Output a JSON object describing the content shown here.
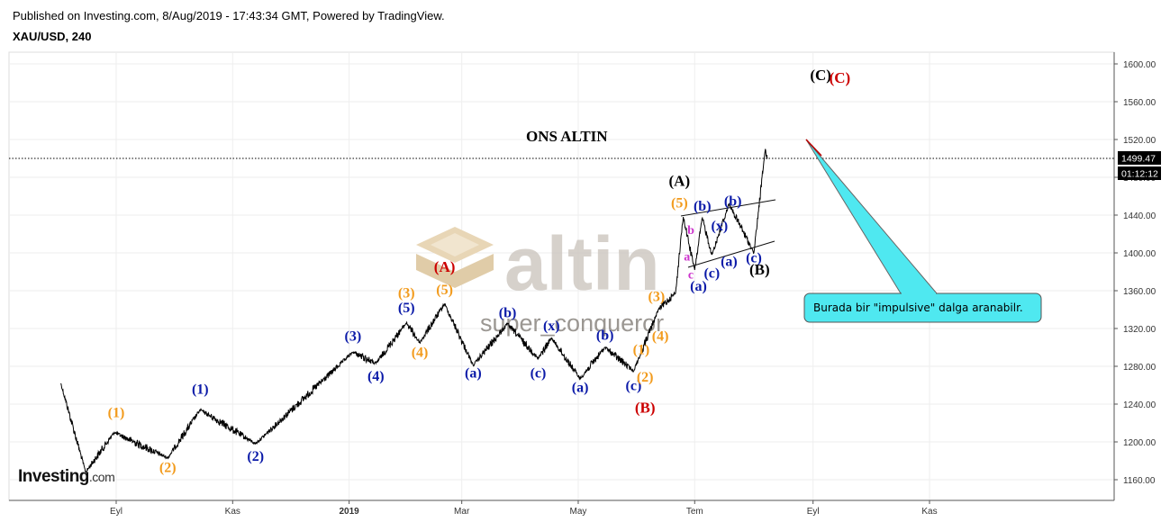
{
  "header": {
    "published": "Published on Investing.com, 8/Aug/2019 - 17:43:34 GMT, Powered by TradingView.",
    "symbol": "XAU/USD, 240"
  },
  "watermark": {
    "site": "altin",
    "author": "super_conqueror"
  },
  "logo": {
    "brand": "Investing",
    "suffix": ".com"
  },
  "price_tags": {
    "last_price": "1499.47",
    "countdown": "01:12:12"
  },
  "annotations": {
    "title": "ONS ALTIN",
    "callout": "Burada bir \"impulsive\" dalga aranabilr."
  },
  "colors": {
    "price_line": "#000000",
    "label_orange": "#f29b1d",
    "label_blue": "#0b1aa8",
    "label_red": "#cc0000",
    "label_black": "#000000",
    "label_magenta": "#cc33cc",
    "callout_fill": "#4fe8f0",
    "watermark": "#c8c0b8"
  },
  "chart_data": {
    "type": "line",
    "title": "",
    "series_name": "XAU/USD",
    "ylim": [
      1140,
      1615
    ],
    "y_ticks": [
      "1600.00",
      "1560.00",
      "1520.00",
      "1480.00",
      "1440.00",
      "1400.00",
      "1360.00",
      "1320.00",
      "1280.00",
      "1240.00",
      "1200.00",
      "1160.00"
    ],
    "x_ticks": [
      "Eyl",
      "Kas",
      "2019",
      "Mar",
      "May",
      "Tem",
      "Eyl",
      "Kas"
    ],
    "last_price": 1499.47,
    "key_points": [
      {
        "x": "2018-08-03",
        "y": 1262
      },
      {
        "x": "2018-08-16",
        "y": 1168
      },
      {
        "x": "2018-08-31",
        "y": 1210
      },
      {
        "x": "2018-09-28",
        "y": 1183
      },
      {
        "x": "2018-10-15",
        "y": 1234
      },
      {
        "x": "2018-11-13",
        "y": 1198
      },
      {
        "x": "2019-01-03",
        "y": 1295
      },
      {
        "x": "2019-01-15",
        "y": 1283
      },
      {
        "x": "2019-01-31",
        "y": 1326
      },
      {
        "x": "2019-02-07",
        "y": 1305
      },
      {
        "x": "2019-02-20",
        "y": 1346
      },
      {
        "x": "2019-03-07",
        "y": 1281
      },
      {
        "x": "2019-03-25",
        "y": 1325
      },
      {
        "x": "2019-04-10",
        "y": 1288
      },
      {
        "x": "2019-04-17",
        "y": 1310
      },
      {
        "x": "2019-05-02",
        "y": 1267
      },
      {
        "x": "2019-05-15",
        "y": 1300
      },
      {
        "x": "2019-05-30",
        "y": 1275
      },
      {
        "x": "2019-06-12",
        "y": 1340
      },
      {
        "x": "2019-06-21",
        "y": 1358
      },
      {
        "x": "2019-06-25",
        "y": 1438
      },
      {
        "x": "2019-07-01",
        "y": 1382
      },
      {
        "x": "2019-07-05",
        "y": 1437
      },
      {
        "x": "2019-07-10",
        "y": 1398
      },
      {
        "x": "2019-07-19",
        "y": 1452
      },
      {
        "x": "2019-08-01",
        "y": 1400
      },
      {
        "x": "2019-08-07",
        "y": 1510
      },
      {
        "x": "2019-08-08",
        "y": 1499.47
      }
    ],
    "wave_labels": [
      {
        "text": "(1)",
        "color": "orange",
        "x": "2018-09-01",
        "y": 1226
      },
      {
        "text": "(2)",
        "color": "orange",
        "x": "2018-09-28",
        "y": 1168
      },
      {
        "text": "(1)",
        "color": "blue",
        "x": "2018-10-15",
        "y": 1251
      },
      {
        "text": "(2)",
        "color": "blue",
        "x": "2018-11-13",
        "y": 1180
      },
      {
        "text": "(3)",
        "color": "blue",
        "x": "2019-01-03",
        "y": 1307
      },
      {
        "text": "(4)",
        "color": "blue",
        "x": "2019-01-15",
        "y": 1265
      },
      {
        "text": "(5)",
        "color": "blue",
        "x": "2019-01-31",
        "y": 1337
      },
      {
        "text": "(3)",
        "color": "orange",
        "x": "2019-01-31",
        "y": 1353
      },
      {
        "text": "(4)",
        "color": "orange",
        "x": "2019-02-07",
        "y": 1290
      },
      {
        "text": "(5)",
        "color": "orange",
        "x": "2019-02-20",
        "y": 1356
      },
      {
        "text": "(A)",
        "color": "red",
        "x": "2019-02-20",
        "y": 1380
      },
      {
        "text": "(a)",
        "color": "blue",
        "x": "2019-03-07",
        "y": 1268
      },
      {
        "text": "(b)",
        "color": "blue",
        "x": "2019-03-25",
        "y": 1332
      },
      {
        "text": "(c)",
        "color": "blue",
        "x": "2019-04-10",
        "y": 1268
      },
      {
        "text": "(x)",
        "color": "blue",
        "x": "2019-04-17",
        "y": 1318
      },
      {
        "text": "(a)",
        "color": "blue",
        "x": "2019-05-02",
        "y": 1253
      },
      {
        "text": "(b)",
        "color": "blue",
        "x": "2019-05-15",
        "y": 1308
      },
      {
        "text": "(c)",
        "color": "blue",
        "x": "2019-05-30",
        "y": 1255
      },
      {
        "text": "(1)",
        "color": "orange",
        "x": "2019-06-03",
        "y": 1293
      },
      {
        "text": "(2)",
        "color": "orange",
        "x": "2019-06-05",
        "y": 1264
      },
      {
        "text": "(B)",
        "color": "red",
        "x": "2019-06-05",
        "y": 1231
      },
      {
        "text": "(3)",
        "color": "orange",
        "x": "2019-06-11",
        "y": 1349
      },
      {
        "text": "(4)",
        "color": "orange",
        "x": "2019-06-13",
        "y": 1307
      },
      {
        "text": "(5)",
        "color": "orange",
        "x": "2019-06-23",
        "y": 1448
      },
      {
        "text": "(A)",
        "color": "black",
        "x": "2019-06-23",
        "y": 1471
      },
      {
        "text": "b",
        "color": "magenta",
        "x": "2019-06-29",
        "y": 1420
      },
      {
        "text": "a",
        "color": "magenta",
        "x": "2019-06-27",
        "y": 1392
      },
      {
        "text": "c",
        "color": "magenta",
        "x": "2019-06-29",
        "y": 1373
      },
      {
        "text": "(a)",
        "color": "blue",
        "x": "2019-07-03",
        "y": 1360
      },
      {
        "text": "(b)",
        "color": "blue",
        "x": "2019-07-05",
        "y": 1445
      },
      {
        "text": "(c)",
        "color": "blue",
        "x": "2019-07-10",
        "y": 1374
      },
      {
        "text": "(x)",
        "color": "blue",
        "x": "2019-07-14",
        "y": 1424
      },
      {
        "text": "(a)",
        "color": "blue",
        "x": "2019-07-19",
        "y": 1386
      },
      {
        "text": "(b)",
        "color": "blue",
        "x": "2019-07-21",
        "y": 1450
      },
      {
        "text": "(c)",
        "color": "blue",
        "x": "2019-08-01",
        "y": 1390
      },
      {
        "text": "(B)",
        "color": "black",
        "x": "2019-08-04",
        "y": 1377
      },
      {
        "text": "(C)",
        "color": "black",
        "x": "2019-09-05",
        "y": 1583
      },
      {
        "text": "(C)",
        "color": "red",
        "x": "2019-09-15",
        "y": 1580
      }
    ]
  }
}
